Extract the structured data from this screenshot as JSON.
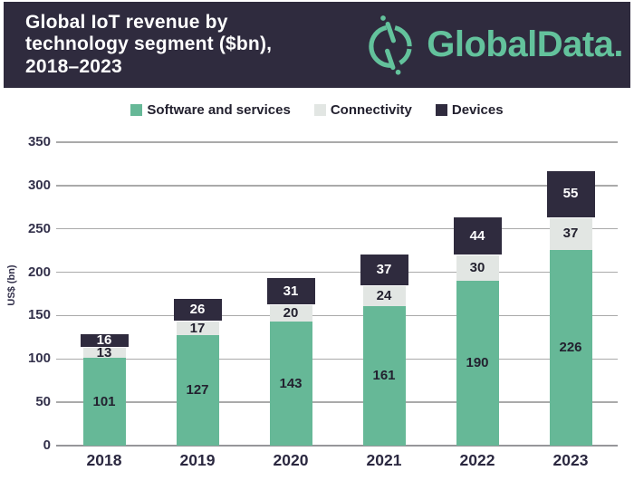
{
  "header": {
    "title": "Global IoT revenue by\ntechnology segment ($bn),\n2018–2023",
    "logo_text": "GlobalData.",
    "background_color": "#2f2b3e",
    "brand_green": "#63c29c"
  },
  "legend": {
    "items": [
      {
        "label": "Software and services",
        "color": "#66b897"
      },
      {
        "label": "Connectivity",
        "color": "#e2e6e3"
      },
      {
        "label": "Devices",
        "color": "#2f2b3e"
      }
    ]
  },
  "chart_data": {
    "type": "bar",
    "stacked": true,
    "title": "Global IoT revenue by technology segment ($bn), 2018–2023",
    "categories": [
      "2018",
      "2019",
      "2020",
      "2021",
      "2022",
      "2023"
    ],
    "series": [
      {
        "name": "Software and services",
        "color": "#66b897",
        "label_color": "#23212f",
        "values": [
          101,
          127,
          143,
          161,
          190,
          226
        ]
      },
      {
        "name": "Connectivity",
        "color": "#e2e6e3",
        "label_color": "#23212f",
        "values": [
          13,
          17,
          20,
          24,
          30,
          37
        ]
      },
      {
        "name": "Devices",
        "color": "#2f2b3e",
        "label_color": "#ffffff",
        "values": [
          16,
          26,
          31,
          37,
          44,
          55
        ]
      }
    ],
    "totals": [
      130,
      170,
      194,
      222,
      264,
      318
    ],
    "xlabel": "",
    "ylabel": "US$ (bn)",
    "yticks": [
      0,
      50,
      100,
      150,
      200,
      250,
      300,
      350
    ],
    "ylim": [
      0,
      350
    ],
    "grid": true,
    "legend_position": "top",
    "data_labels": true
  }
}
